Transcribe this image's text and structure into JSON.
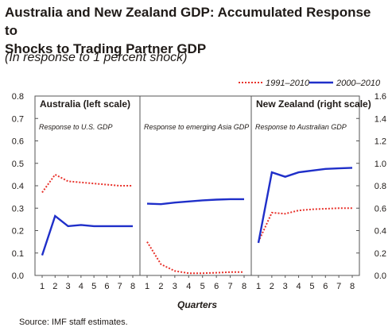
{
  "title_line1": "Australia and New Zealand GDP: Accumulated Response to",
  "title_line2": "Shocks to Trading Partner GDP",
  "subtitle": "(In response to 1 percent shock)",
  "source": "Source: IMF staff estimates.",
  "colors": {
    "series_1991_2010": "#e8322b",
    "series_2000_2010": "#1f2fc9",
    "frame": "#555555"
  },
  "chart_data": {
    "type": "line",
    "xlabel": "Quarters",
    "x": [
      1,
      2,
      3,
      4,
      5,
      6,
      7,
      8
    ],
    "left_axis": {
      "ylim": [
        0,
        0.8
      ],
      "ticks": [
        "0.0",
        "0.1",
        "0.2",
        "0.3",
        "0.4",
        "0.5",
        "0.6",
        "0.7",
        "0.8"
      ]
    },
    "right_axis": {
      "ylim": [
        0,
        1.6
      ],
      "ticks": [
        "0.0",
        "0.2",
        "0.4",
        "0.6",
        "0.8",
        "1.0",
        "1.2",
        "1.4",
        "1.6"
      ]
    },
    "legend": {
      "placement": "top-right",
      "entries": [
        {
          "name": "1991–2010",
          "style": "dotted"
        },
        {
          "name": "2000–2010",
          "style": "solid"
        }
      ]
    },
    "panels": [
      {
        "panel_label": "Australia (left scale)",
        "caption": "Response to U.S. GDP",
        "axis": "left",
        "series": [
          {
            "name": "1991–2010",
            "values": [
              0.37,
              0.45,
              0.42,
              0.415,
              0.41,
              0.405,
              0.4,
              0.4
            ]
          },
          {
            "name": "2000–2010",
            "values": [
              0.09,
              0.265,
              0.22,
              0.225,
              0.22,
              0.22,
              0.22,
              0.22
            ]
          }
        ]
      },
      {
        "panel_label": "",
        "caption": "Response to emerging Asia GDP",
        "axis": "left",
        "series": [
          {
            "name": "1991–2010",
            "values": [
              0.15,
              0.05,
              0.02,
              0.01,
              0.01,
              0.012,
              0.015,
              0.015
            ]
          },
          {
            "name": "2000–2010",
            "values": [
              0.32,
              0.318,
              0.325,
              0.33,
              0.335,
              0.338,
              0.34,
              0.34
            ]
          }
        ]
      },
      {
        "panel_label": "New Zealand (right scale)",
        "caption": "Response to Australian GDP",
        "axis": "right",
        "series": [
          {
            "name": "1991–2010",
            "values": [
              0.3,
              0.56,
              0.55,
              0.58,
              0.59,
              0.595,
              0.6,
              0.6
            ]
          },
          {
            "name": "2000–2010",
            "values": [
              0.29,
              0.92,
              0.88,
              0.92,
              0.935,
              0.95,
              0.955,
              0.96
            ]
          }
        ]
      }
    ]
  }
}
